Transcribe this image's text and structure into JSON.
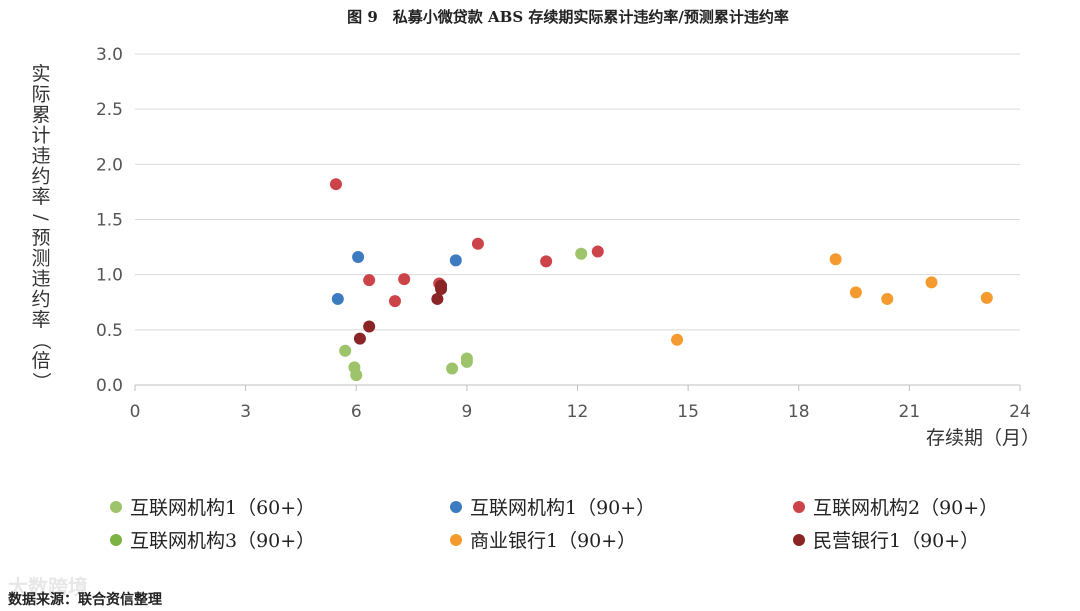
{
  "chart_data": {
    "type": "scatter",
    "title": "图 9　私募小微贷款 ABS 存续期实际累计违约率/预测累计违约率",
    "xlabel": "存续期（月）",
    "ylabel": "实际累计违约率/预测违约率（倍）",
    "xlim": [
      0,
      24
    ],
    "ylim": [
      0,
      3.0
    ],
    "x_ticks": [
      "0",
      "3",
      "6",
      "9",
      "12",
      "15",
      "18",
      "21",
      "24"
    ],
    "y_ticks": [
      "0.0",
      "0.5",
      "1.0",
      "1.5",
      "2.0",
      "2.5",
      "3.0"
    ],
    "grid": "horizontal",
    "legend_position": "bottom",
    "series": [
      {
        "name": "互联网机构1（60+）",
        "color": "#9dc46a",
        "points": [
          [
            5.7,
            0.31
          ],
          [
            5.95,
            0.16
          ],
          [
            6.0,
            0.09
          ],
          [
            8.6,
            0.15
          ],
          [
            9.0,
            0.24
          ],
          [
            9.0,
            0.21
          ],
          [
            12.1,
            1.19
          ]
        ]
      },
      {
        "name": "互联网机构1（90+）",
        "color": "#3c7bbf",
        "points": [
          [
            5.5,
            0.78
          ],
          [
            6.05,
            1.16
          ],
          [
            8.7,
            1.13
          ]
        ]
      },
      {
        "name": "互联网机构2（90+）",
        "color": "#cc4449",
        "points": [
          [
            5.45,
            1.82
          ],
          [
            6.35,
            0.95
          ],
          [
            7.05,
            0.76
          ],
          [
            7.3,
            0.96
          ],
          [
            8.25,
            0.92
          ],
          [
            9.3,
            1.28
          ],
          [
            11.15,
            1.12
          ],
          [
            12.55,
            1.21
          ]
        ]
      },
      {
        "name": "互联网机构3（90+）",
        "color": "#7cb342",
        "points": []
      },
      {
        "name": "商业银行1（90+）",
        "color": "#f59a2f",
        "points": [
          [
            14.7,
            0.41
          ],
          [
            19.0,
            1.14
          ],
          [
            19.55,
            0.84
          ],
          [
            20.4,
            0.78
          ],
          [
            21.6,
            0.93
          ],
          [
            23.1,
            0.79
          ]
        ]
      },
      {
        "name": "民营银行1（90+）",
        "color": "#8b2525",
        "points": [
          [
            6.1,
            0.42
          ],
          [
            6.35,
            0.53
          ],
          [
            8.2,
            0.78
          ],
          [
            8.3,
            0.9
          ],
          [
            8.3,
            0.87
          ]
        ]
      }
    ]
  },
  "source_note": "数据来源：联合资信整理",
  "watermark": "大数跨境"
}
